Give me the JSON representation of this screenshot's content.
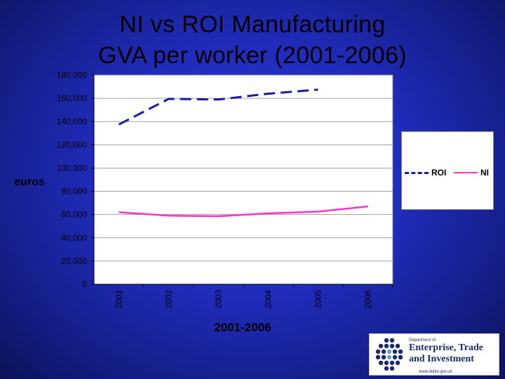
{
  "title": {
    "line1": "NI vs ROI Manufacturing",
    "line2": "GVA per worker (2001-2006)"
  },
  "logo": {
    "subtitle": "Department of",
    "name": "Enterprise, Trade and Investment",
    "url": "www.detini.gov.uk",
    "icon": "dots-cluster-logo-icon",
    "color": "#1a2a6c"
  },
  "chart_data": {
    "type": "line",
    "title": "",
    "xlabel": "2001-2006",
    "ylabel": "euros",
    "categories": [
      "2001",
      "2002",
      "2003",
      "2004",
      "2005",
      "2006"
    ],
    "ylim": [
      0,
      180000
    ],
    "yticks": [
      0,
      20000,
      40000,
      60000,
      80000,
      100000,
      120000,
      140000,
      160000,
      180000
    ],
    "ytick_labels": [
      "0",
      "20,000",
      "40,000",
      "60,000",
      "80,000",
      "100,000",
      "120,000",
      "140,000",
      "160,000",
      "180,000"
    ],
    "grid": true,
    "legend": "right",
    "series": [
      {
        "name": "ROI",
        "color": "#1a1aa8",
        "style": "dashed",
        "values": [
          137500,
          159500,
          159000,
          164000,
          167500,
          null
        ]
      },
      {
        "name": "NI",
        "color": "#ff33cc",
        "style": "solid",
        "values": [
          62000,
          59000,
          58500,
          61000,
          62500,
          67000
        ]
      }
    ]
  }
}
